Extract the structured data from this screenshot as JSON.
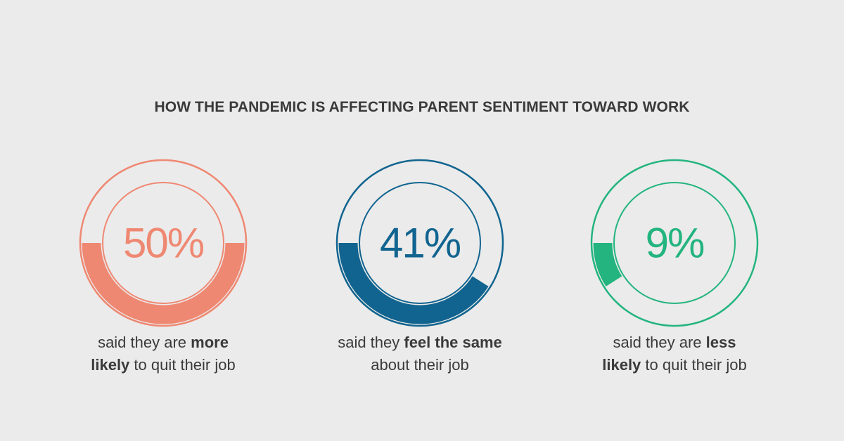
{
  "chart_data": {
    "type": "donut",
    "title": "HOW THE PANDEMIC IS AFFECTING PARENT SENTIMENT TOWARD WORK",
    "items": [
      {
        "value": 50,
        "label": "50%",
        "color": "#ef8872",
        "caption_line1": {
          "pre": "said they are ",
          "bold": "more"
        },
        "caption_line2": {
          "bold": "likely",
          "post": " to quit their job"
        }
      },
      {
        "value": 41,
        "label": "41%",
        "color": "#11648f",
        "caption_line1": {
          "pre": "said they ",
          "bold": "feel the same"
        },
        "caption_line2": {
          "bold": "",
          "post": "about their job"
        }
      },
      {
        "value": 9,
        "label": "9%",
        "color": "#23b47f",
        "caption_line1": {
          "pre": "said they are ",
          "bold": "less"
        },
        "caption_line2": {
          "bold": "likely",
          "post": " to quit their job"
        }
      }
    ]
  }
}
